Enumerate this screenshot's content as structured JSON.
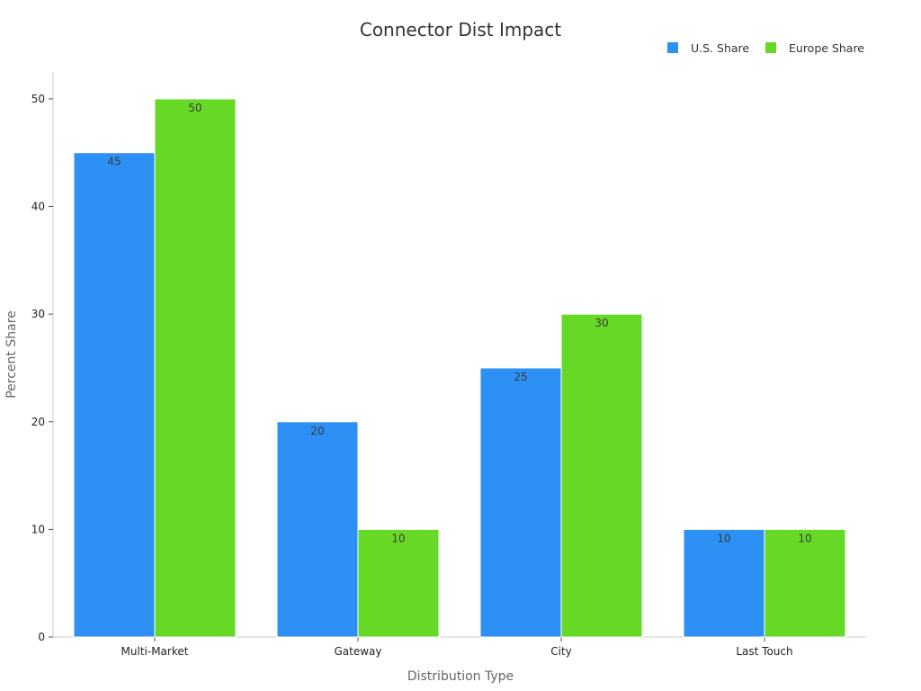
{
  "chart_data": {
    "type": "bar",
    "title": "Connector Dist Impact",
    "xlabel": "Distribution Type",
    "ylabel": "Percent Share",
    "categories": [
      "Multi-Market",
      "Gateway",
      "City",
      "Last Touch"
    ],
    "series": [
      {
        "name": "U.S. Share",
        "color": "#2d90f5",
        "values": [
          45,
          20,
          25,
          10
        ]
      },
      {
        "name": "Europe Share",
        "color": "#66d926",
        "values": [
          50,
          10,
          30,
          10
        ]
      }
    ],
    "ylim": [
      0,
      52.5
    ],
    "yticks": [
      0,
      10,
      20,
      30,
      40,
      50
    ],
    "grid": false,
    "legend_position": "top-right",
    "data_labels": true
  }
}
